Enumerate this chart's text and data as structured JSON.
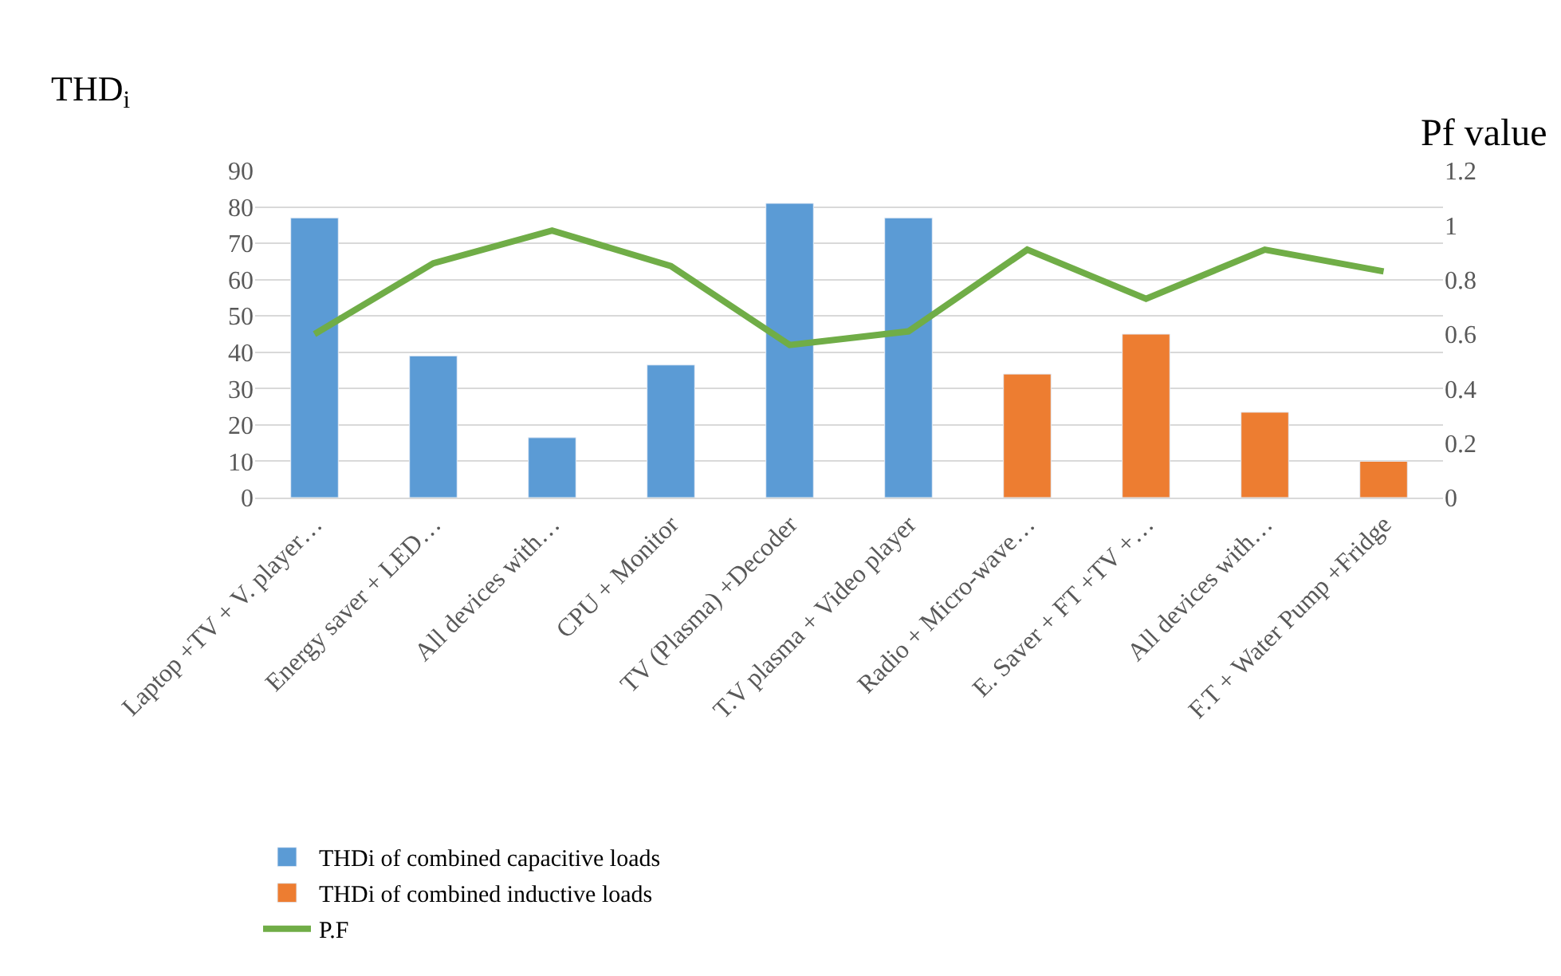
{
  "chart_data": {
    "type": "bar",
    "ylabel": "THD$_{i}$",
    "y2label": "Pf value",
    "categories": [
      "Laptop +TV + V. player…",
      "Energy saver + LED…",
      "All devices with…",
      "CPU + Monitor",
      "TV (Plasma) +Decoder",
      "T.V plasma + Video player",
      "Radio + Micro-wave…",
      "E. Saver + FT +TV +…",
      "All devices with…",
      "F.T + Water Pump +Fridge"
    ],
    "series": [
      {
        "name": "THDi of combined capacitive loads",
        "color": "#5b9bd5",
        "values": [
          77,
          39,
          16.5,
          36.5,
          81,
          77,
          null,
          null,
          null,
          null
        ]
      },
      {
        "name": "THDi of combined inductive loads",
        "color": "#ed7d31",
        "values": [
          null,
          null,
          null,
          null,
          null,
          null,
          34,
          45,
          23.5,
          10
        ]
      },
      {
        "name": "P.F",
        "type": "line",
        "axis": "y2",
        "color": "#70ad47",
        "values": [
          0.6,
          0.86,
          0.98,
          0.85,
          0.56,
          0.61,
          0.91,
          0.73,
          0.91,
          0.83
        ]
      }
    ],
    "ylim": [
      0,
      90
    ],
    "yticks": [
      0,
      10,
      20,
      30,
      40,
      50,
      60,
      70,
      80,
      90
    ],
    "y2lim": [
      0,
      1.2
    ],
    "y2ticks": [
      0,
      0.2,
      0.4,
      0.6,
      0.8,
      1,
      1.2
    ],
    "grid": "y",
    "legend": "bottom",
    "marker": "none",
    "line_style": "solid"
  }
}
